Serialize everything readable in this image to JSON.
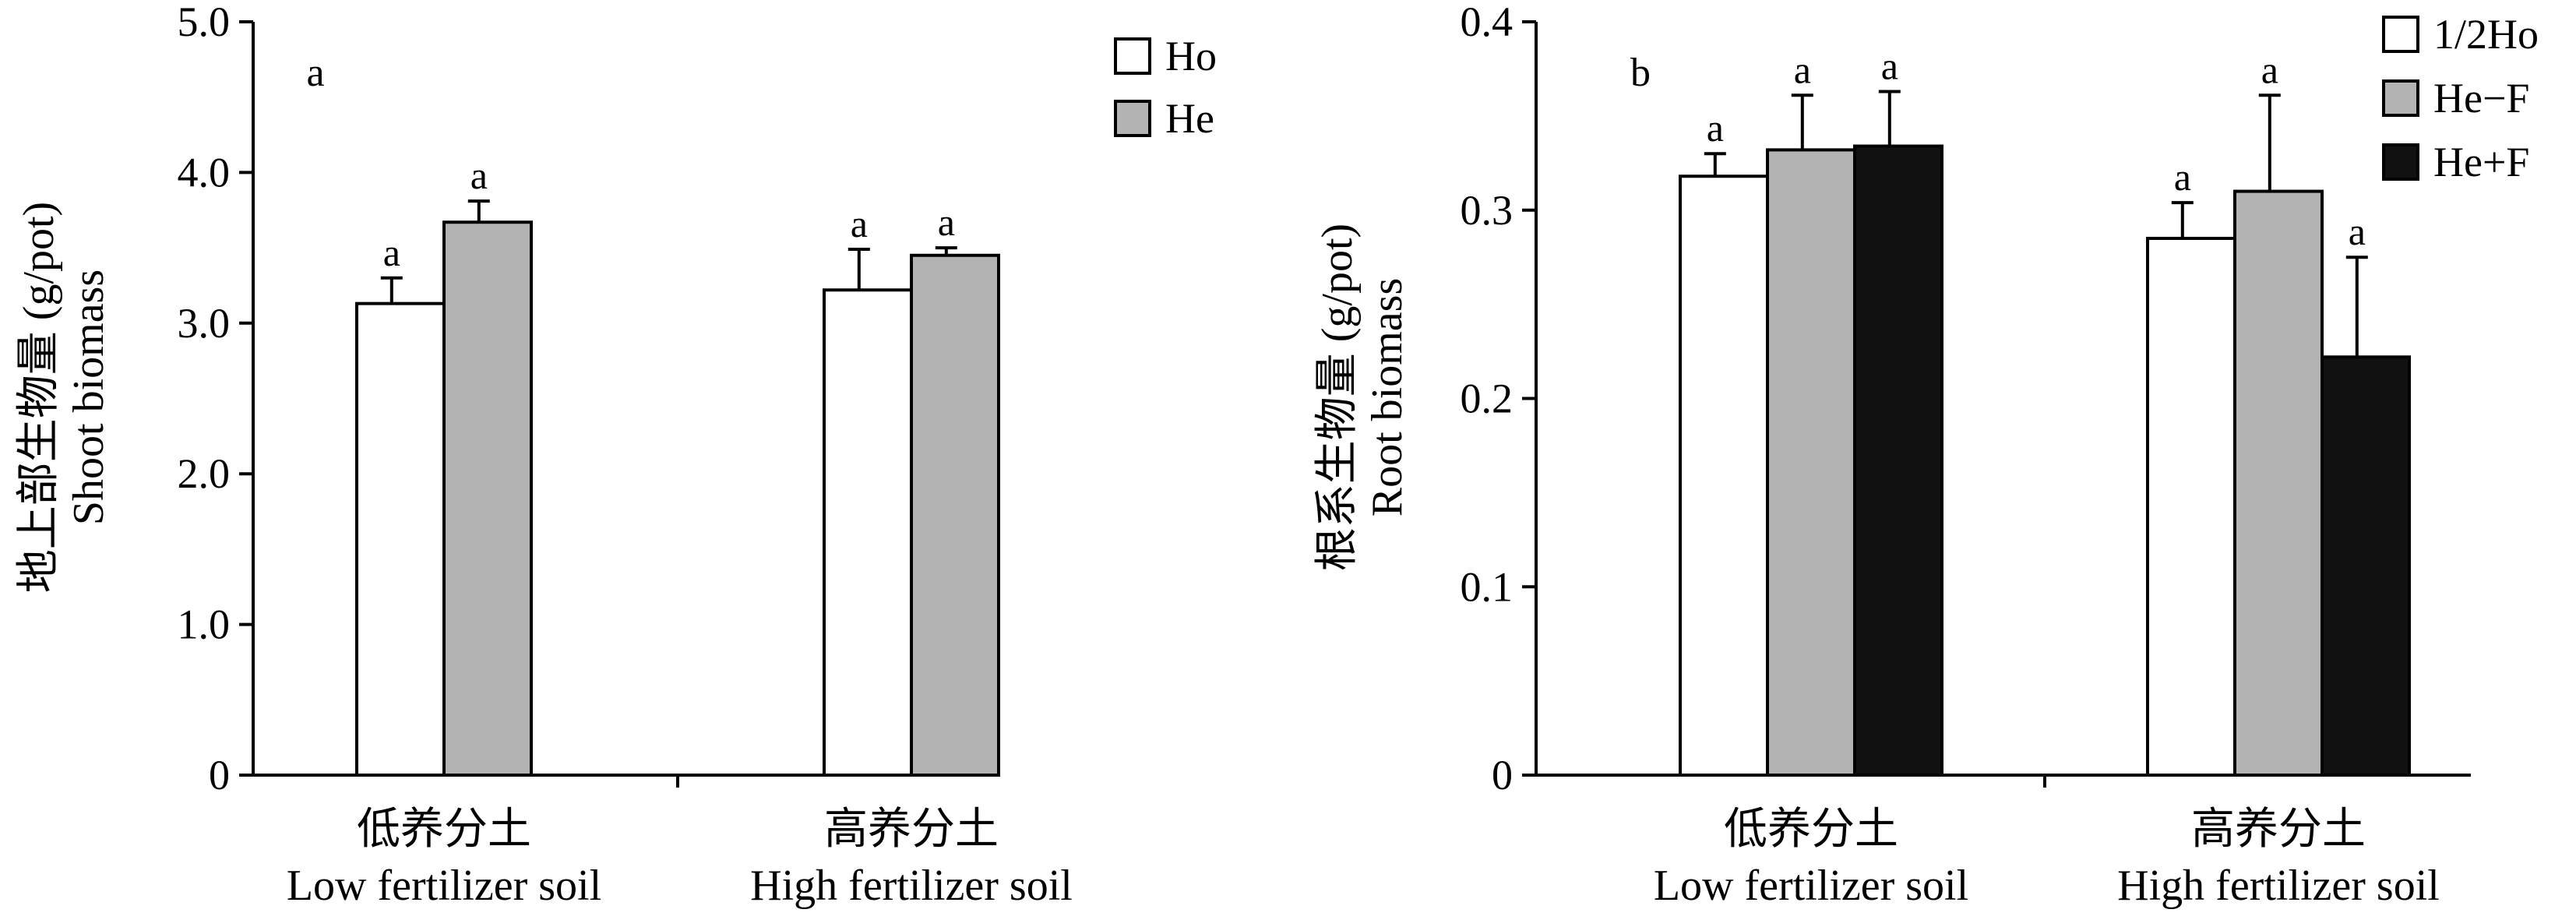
{
  "chart_data": [
    {
      "type": "bar",
      "panel_label": "a",
      "ylabel_zh": "地上部生物量 (g/pot)",
      "ylabel_en": "Shoot biomass",
      "ylim": [
        0,
        5.0
      ],
      "yticks": [
        "0",
        "1.0",
        "2.0",
        "3.0",
        "4.0",
        "5.0"
      ],
      "categories": [
        {
          "zh": "低养分土",
          "en": "Low fertilizer soil"
        },
        {
          "zh": "高养分土",
          "en": "High fertilizer soil"
        }
      ],
      "series": [
        {
          "name": "Ho",
          "color": "#ffffff",
          "values": [
            3.13,
            3.22
          ],
          "errors": [
            0.17,
            0.27
          ],
          "labels": [
            "a",
            "a"
          ]
        },
        {
          "name": "He",
          "color": "#b3b3b3",
          "values": [
            3.67,
            3.45
          ],
          "errors": [
            0.14,
            0.05
          ],
          "labels": [
            "a",
            "a"
          ]
        }
      ],
      "legend": "top-right"
    },
    {
      "type": "bar",
      "panel_label": "b",
      "ylabel_zh": "根系生物量 (g/pot)",
      "ylabel_en": "Root biomass",
      "ylim": [
        0,
        0.4
      ],
      "yticks": [
        "0",
        "0.1",
        "0.2",
        "0.3",
        "0.4"
      ],
      "categories": [
        {
          "zh": "低养分土",
          "en": "Low fertilizer soil"
        },
        {
          "zh": "高养分土",
          "en": "High fertilizer soil"
        }
      ],
      "series": [
        {
          "name": "1/2Ho",
          "color": "#ffffff",
          "values": [
            0.318,
            0.285
          ],
          "errors": [
            0.012,
            0.019
          ],
          "labels": [
            "a",
            "a"
          ]
        },
        {
          "name": "He−F",
          "color": "#b3b3b3",
          "values": [
            0.332,
            0.31
          ],
          "errors": [
            0.029,
            0.051
          ],
          "labels": [
            "a",
            "a"
          ]
        },
        {
          "name": "He+F",
          "color": "#111111",
          "values": [
            0.334,
            0.222
          ],
          "errors": [
            0.029,
            0.053
          ],
          "labels": [
            "a",
            "a"
          ]
        }
      ],
      "legend": "top-right"
    }
  ]
}
